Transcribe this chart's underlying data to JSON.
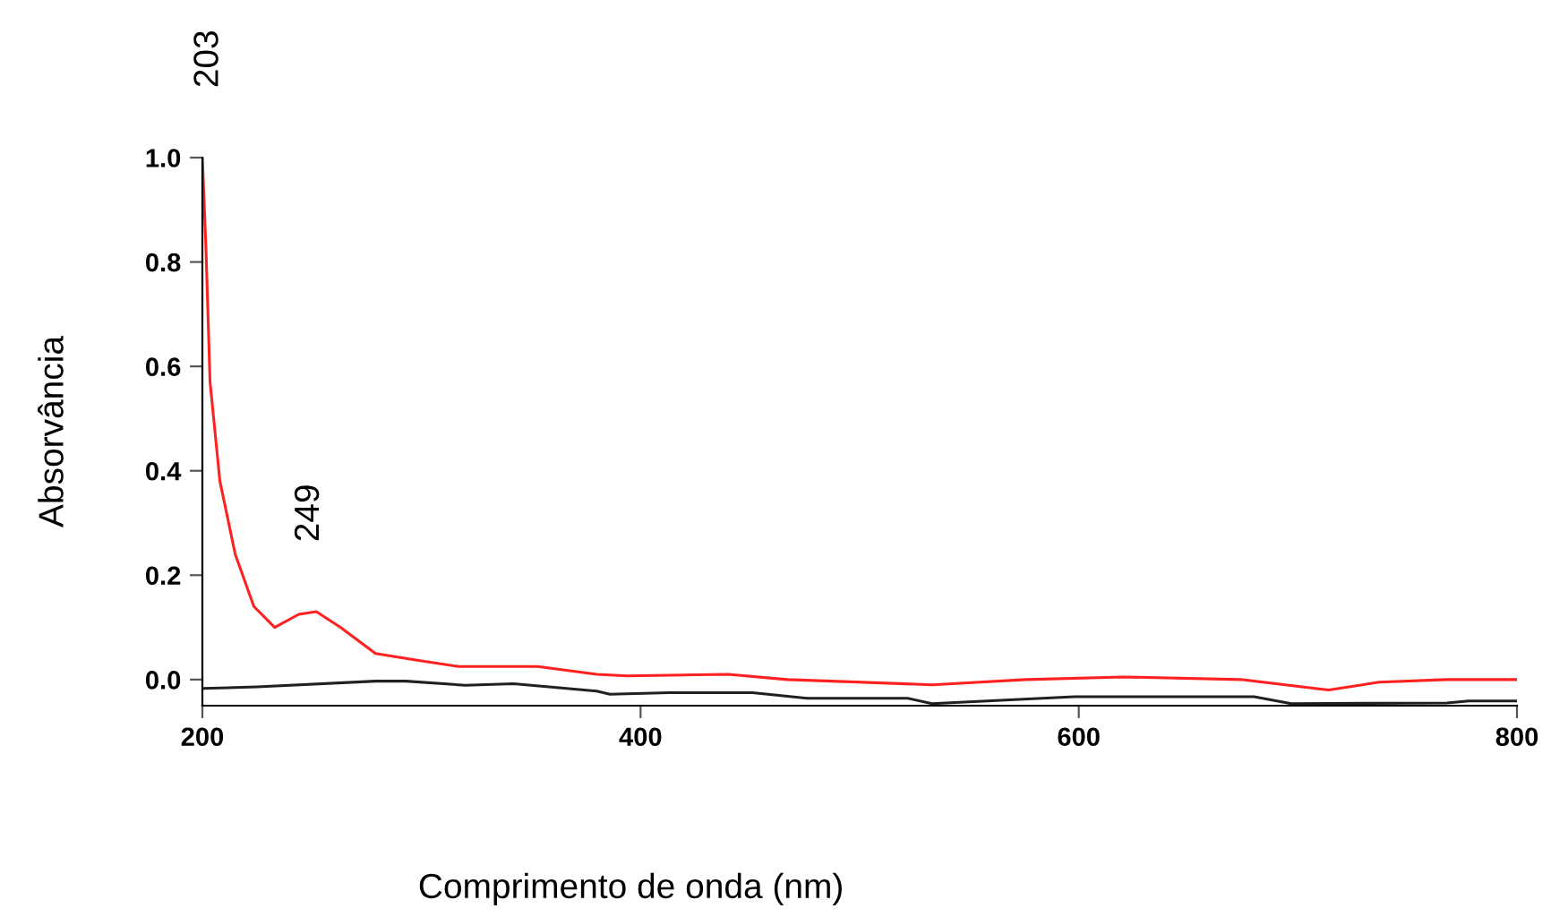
{
  "chart_data": {
    "type": "line",
    "xlabel": "Comprimento de onda (nm)",
    "ylabel": "Absorvância",
    "xlim": [
      200,
      800
    ],
    "xticks": [
      200,
      400,
      600,
      800
    ],
    "ylim": [
      -0.05,
      1.0
    ],
    "yticks": [
      {
        "value": 0,
        "label": "0.0"
      },
      {
        "value": 0.2,
        "label": "0.2"
      },
      {
        "value": 0.4,
        "label": "0.4"
      },
      {
        "value": 0.6,
        "label": "0.6"
      },
      {
        "value": 0.8,
        "label": "0.8"
      },
      {
        "value": 1.0,
        "label": "1.0"
      }
    ],
    "grid": false,
    "legend": false,
    "series": [
      {
        "color": "#ff2020",
        "x": [
          200,
          201.6,
          203.5,
          208,
          215,
          223.5,
          233,
          244,
          252,
          263,
          279,
          298,
          317,
          353,
          380,
          394,
          440,
          467,
          533,
          576,
          620,
          674,
          714,
          737,
          768,
          800
        ],
        "values": [
          1.0,
          0.83,
          0.57,
          0.38,
          0.24,
          0.14,
          0.1,
          0.125,
          0.13,
          0.1,
          0.05,
          0.037,
          0.025,
          0.025,
          0.01,
          0.007,
          0.01,
          0.0,
          -0.01,
          0.0,
          0.005,
          0.0,
          -0.02,
          -0.005,
          0.0,
          0.0
        ]
      },
      {
        "color": "#202020",
        "x": [
          200,
          225,
          279,
          293,
          320,
          342,
          380,
          386,
          413,
          451,
          476,
          522,
          533,
          598,
          680,
          697,
          768,
          778,
          800
        ],
        "values": [
          -0.017,
          -0.014,
          -0.003,
          -0.003,
          -0.011,
          -0.008,
          -0.022,
          -0.028,
          -0.025,
          -0.025,
          -0.036,
          -0.036,
          -0.046,
          -0.033,
          -0.033,
          -0.046,
          -0.045,
          -0.041,
          -0.041
        ]
      }
    ],
    "annotations": [
      {
        "text": "203",
        "x": 203,
        "y": 1.0
      },
      {
        "text": "249",
        "x": 249,
        "y": 0.13
      }
    ]
  }
}
